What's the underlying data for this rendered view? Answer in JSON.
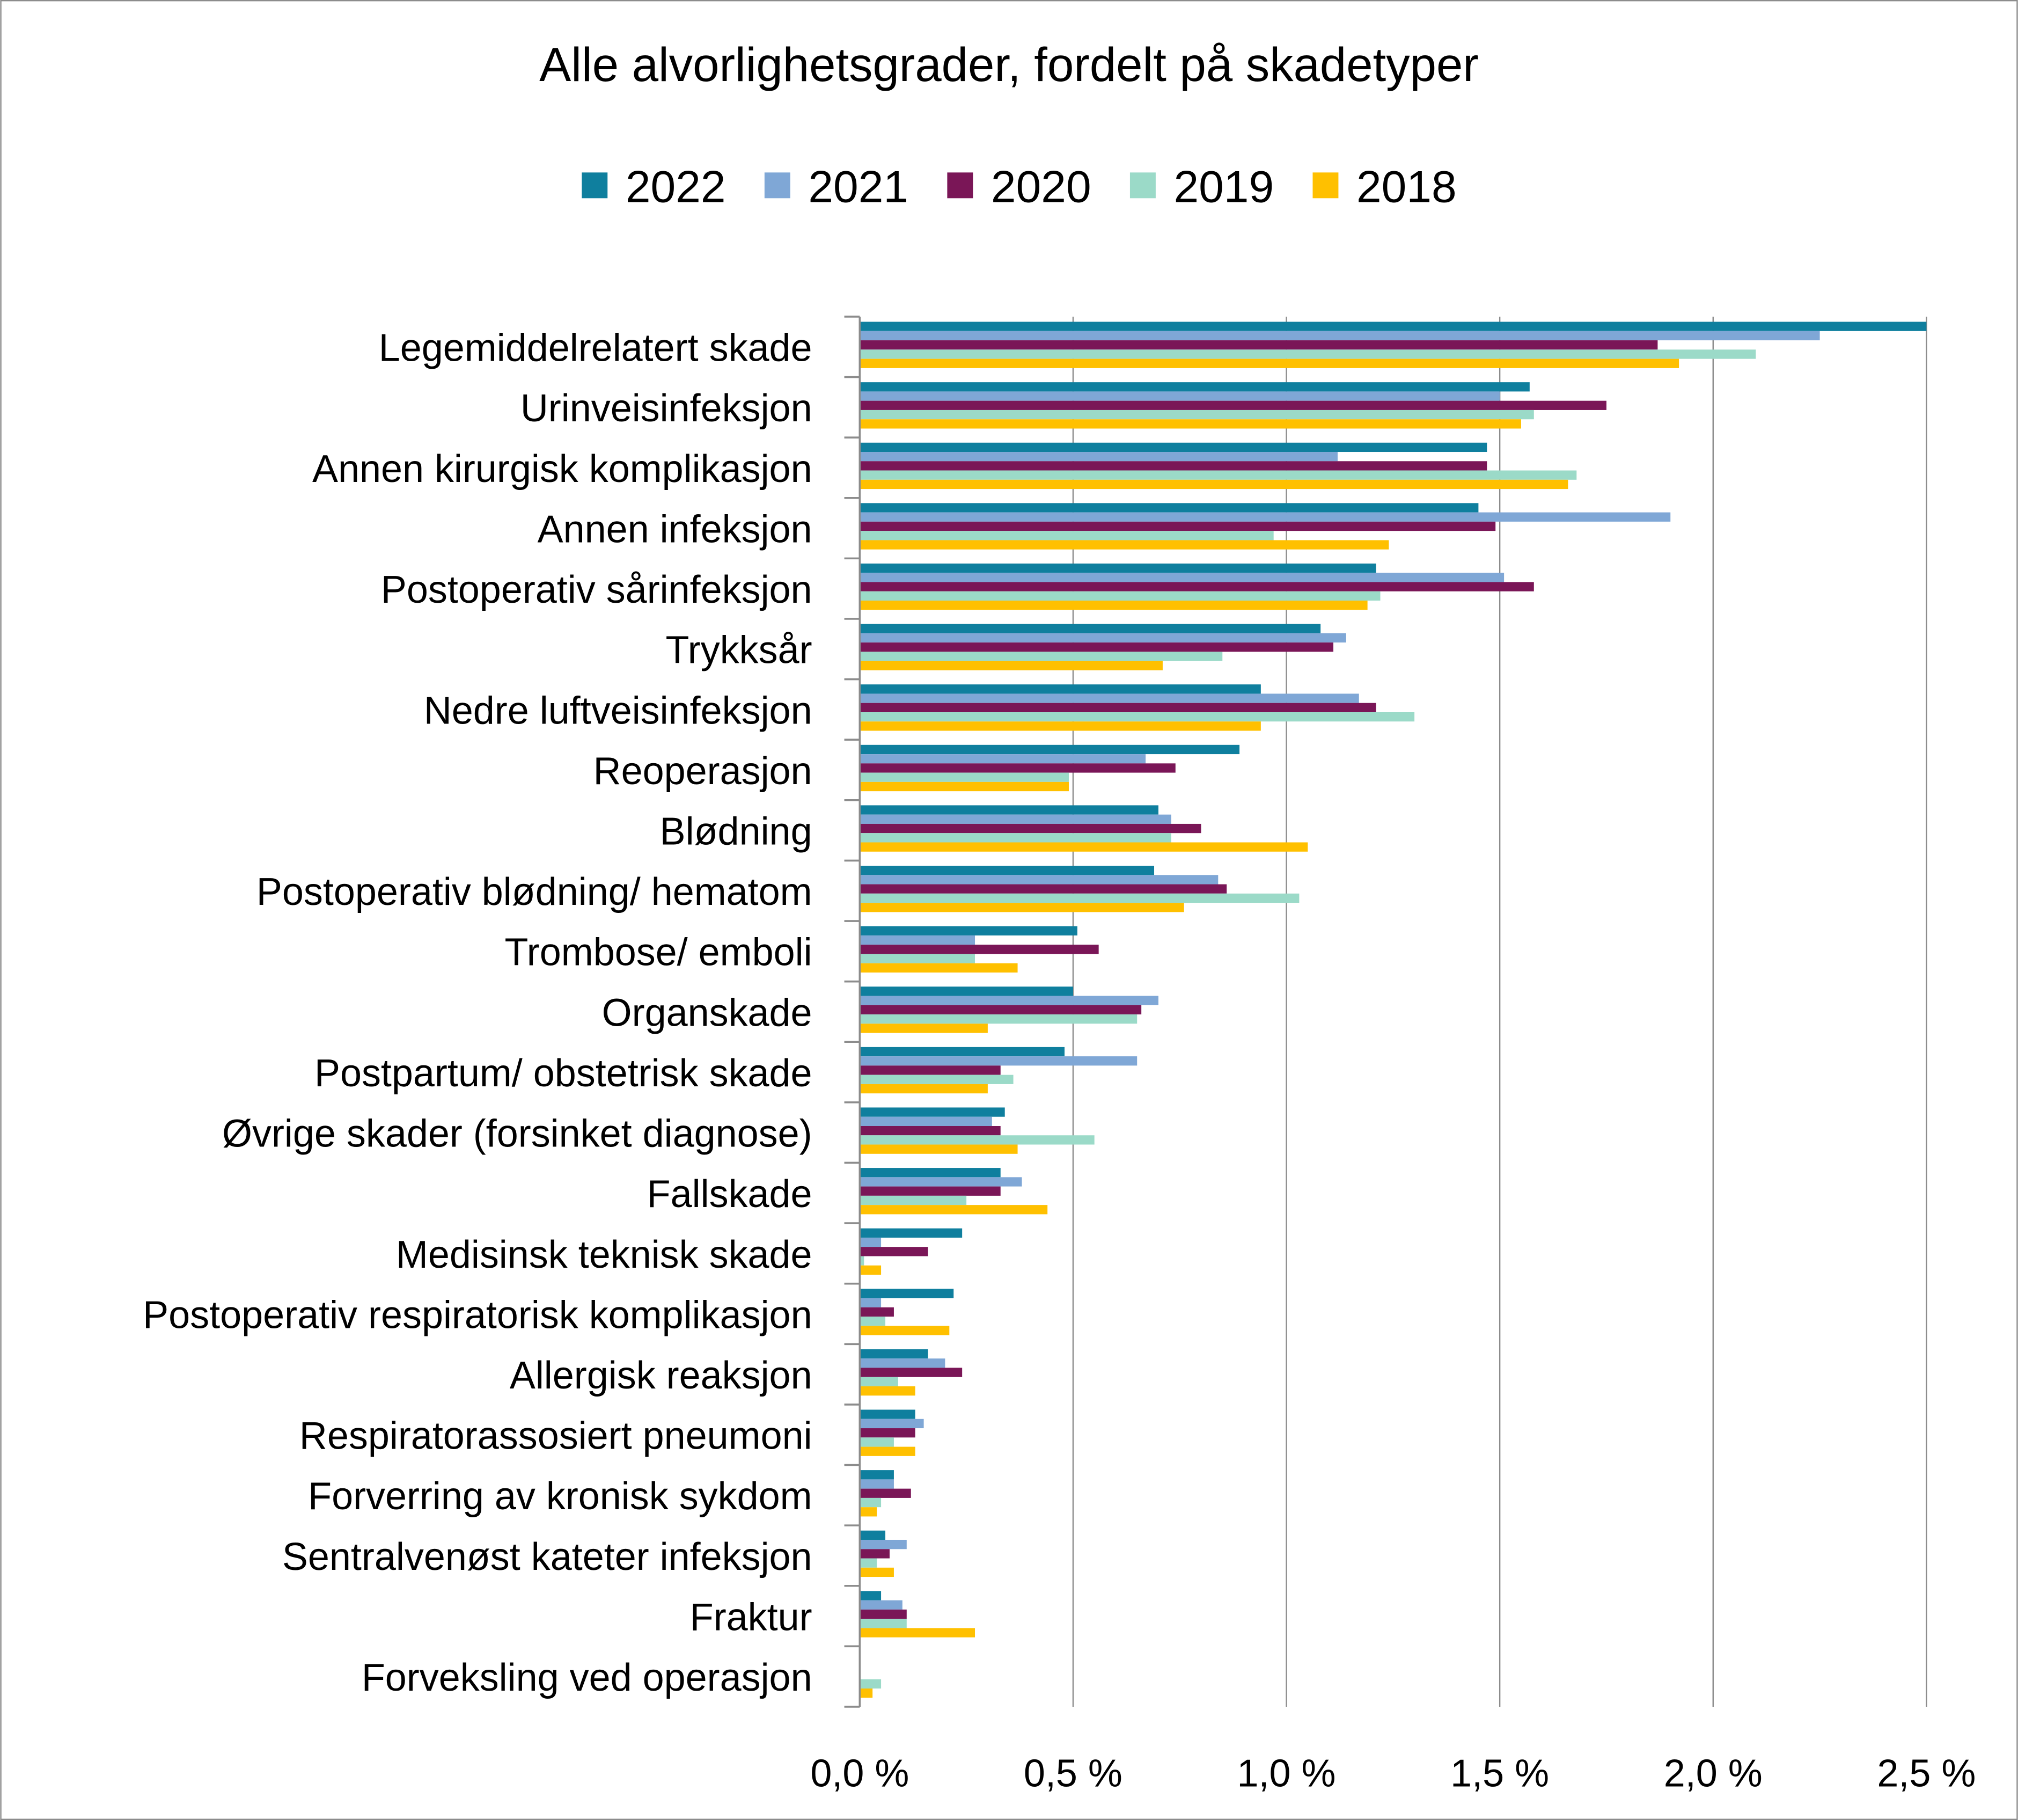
{
  "chart_data": {
    "type": "bar",
    "orientation": "horizontal",
    "title": "Alle alvorlighetsgrader, fordelt på skadetyper",
    "xlabel": "",
    "ylabel": "",
    "xlim": [
      0,
      2.5
    ],
    "x_ticks": [
      "0,0 %",
      "0,5 %",
      "1,0 %",
      "1,5 %",
      "2,0 %",
      "2,5 %"
    ],
    "x_tick_values": [
      0,
      0.5,
      1.0,
      1.5,
      2.0,
      2.5
    ],
    "grid": "vertical gridlines",
    "legend_position": "top",
    "categories": [
      "Legemiddelrelatert skade",
      "Urinveisinfeksjon",
      "Annen kirurgisk komplikasjon",
      "Annen infeksjon",
      "Postoperativ sårinfeksjon",
      "Trykksår",
      "Nedre luftveisinfeksjon",
      "Reoperasjon",
      "Blødning",
      "Postoperativ blødning/ hematom",
      "Trombose/ emboli",
      "Organskade",
      "Postpartum/ obstetrisk skade",
      "Øvrige skader (forsinket diagnose)",
      "Fallskade",
      "Medisinsk teknisk skade",
      "Postoperativ respiratorisk komplikasjon",
      "Allergisk reaksjon",
      "Respiratorassosiert pneumoni",
      "Forverring av kronisk sykdom",
      "Sentralvenøst kateter infeksjon",
      "Fraktur",
      "Forveksling ved operasjon"
    ],
    "series": [
      {
        "name": "2022",
        "color": "#0F7F9E",
        "values": [
          2.5,
          1.57,
          1.47,
          1.45,
          1.21,
          1.08,
          0.94,
          0.89,
          0.7,
          0.69,
          0.51,
          0.5,
          0.48,
          0.34,
          0.33,
          0.24,
          0.22,
          0.16,
          0.13,
          0.08,
          0.06,
          0.05,
          0
        ]
      },
      {
        "name": "2021",
        "color": "#7FA7D6",
        "values": [
          2.25,
          1.5,
          1.12,
          1.9,
          1.51,
          1.14,
          1.17,
          0.67,
          0.73,
          0.84,
          0.27,
          0.7,
          0.65,
          0.31,
          0.38,
          0.05,
          0.05,
          0.2,
          0.15,
          0.08,
          0.11,
          0.1,
          0
        ]
      },
      {
        "name": "2020",
        "color": "#7A1657",
        "values": [
          1.87,
          1.75,
          1.47,
          1.49,
          1.58,
          1.11,
          1.21,
          0.74,
          0.8,
          0.86,
          0.56,
          0.66,
          0.33,
          0.33,
          0.33,
          0.16,
          0.08,
          0.24,
          0.13,
          0.12,
          0.07,
          0.11,
          0
        ]
      },
      {
        "name": "2019",
        "color": "#9BDAC8",
        "values": [
          2.1,
          1.58,
          1.68,
          0.97,
          1.22,
          0.85,
          1.3,
          0.49,
          0.73,
          1.03,
          0.27,
          0.65,
          0.36,
          0.55,
          0.25,
          0.01,
          0.06,
          0.09,
          0.08,
          0.05,
          0.04,
          0.11,
          0.05
        ]
      },
      {
        "name": "2018",
        "color": "#FFC000",
        "values": [
          1.92,
          1.55,
          1.66,
          1.24,
          1.19,
          0.71,
          0.94,
          0.49,
          1.05,
          0.76,
          0.37,
          0.3,
          0.3,
          0.37,
          0.44,
          0.05,
          0.21,
          0.13,
          0.13,
          0.04,
          0.08,
          0.27,
          0.03
        ]
      }
    ]
  }
}
